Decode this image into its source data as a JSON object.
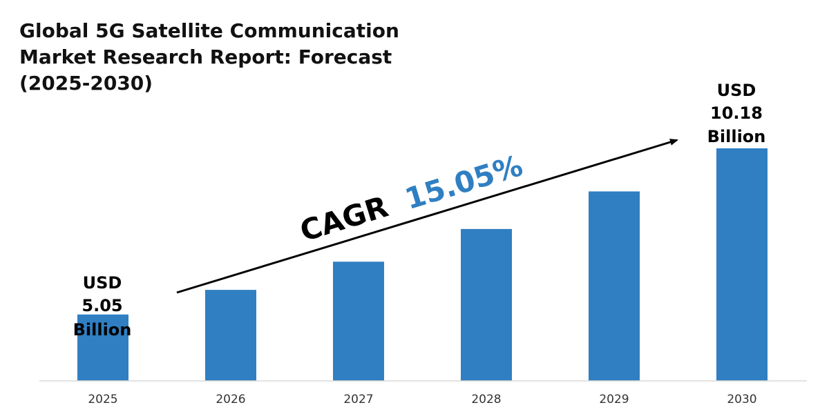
{
  "chart_data": {
    "type": "bar",
    "title_lines": [
      "Global 5G Satellite Communication",
      "Market Research Report: Forecast",
      "(2025-2030)"
    ],
    "categories": [
      "2025",
      "2026",
      "2027",
      "2028",
      "2029",
      "2030"
    ],
    "values": [
      5.05,
      5.81,
      6.68,
      7.69,
      8.85,
      10.18
    ],
    "unit": "USD Billion",
    "ylim": [
      3.0,
      10.18
    ],
    "grid": false,
    "bar_color": "#2f7fc2",
    "annotations": {
      "start_label": [
        "USD",
        "5.05",
        "Billion"
      ],
      "end_label": [
        "USD",
        "10.18",
        "Billion"
      ],
      "cagr_prefix": "CAGR",
      "cagr_value": "15.05%",
      "cagr_value_color": "#2f7fc2"
    }
  }
}
